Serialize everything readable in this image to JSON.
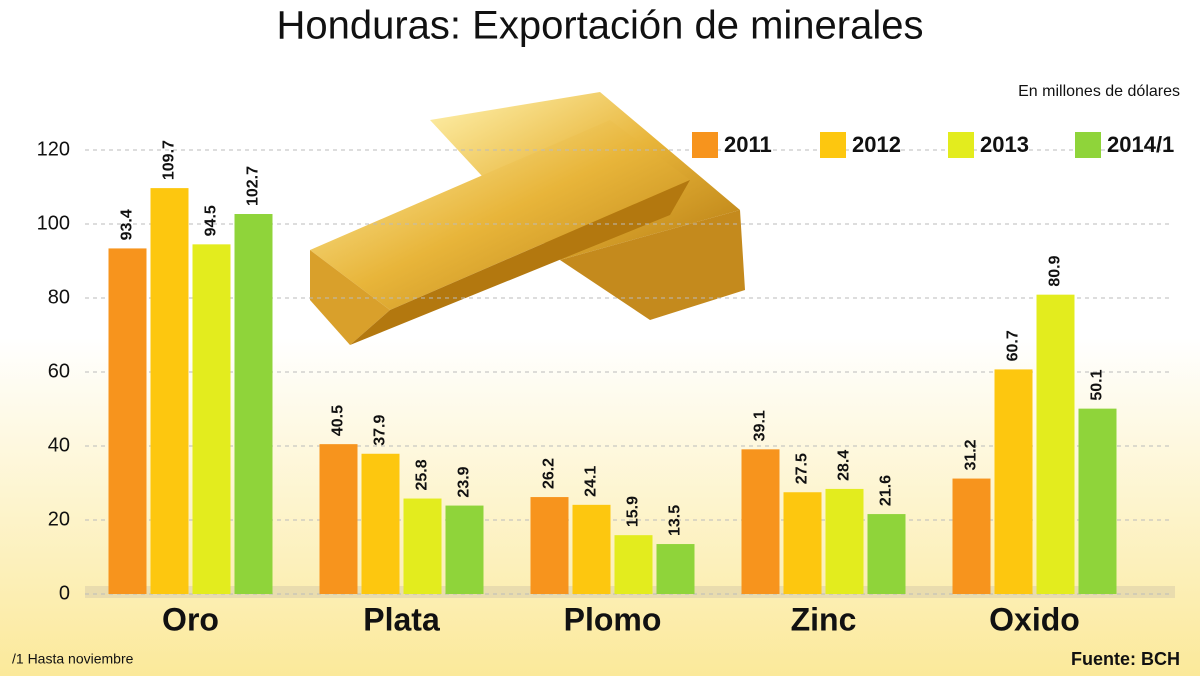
{
  "chart_data": {
    "type": "bar",
    "title": "Honduras: Exportación de minerales",
    "subtitle": "En millones de dólares",
    "footnote": "/1 Hasta noviembre",
    "source": "Fuente: BCH",
    "categories": [
      "Oro",
      "Plata",
      "Plomo",
      "Zinc",
      "Oxido"
    ],
    "series": [
      {
        "name": "2011",
        "color": "#f7941d",
        "values": [
          93.4,
          40.5,
          26.2,
          39.1,
          31.2
        ]
      },
      {
        "name": "2012",
        "color": "#fdc70f",
        "values": [
          109.7,
          37.9,
          24.1,
          27.5,
          60.7
        ]
      },
      {
        "name": "2013",
        "color": "#e3ec1e",
        "values": [
          94.5,
          25.8,
          15.9,
          28.4,
          80.9
        ]
      },
      {
        "name": "2014/1",
        "color": "#8fd43a",
        "values": [
          102.7,
          23.9,
          13.5,
          21.6,
          50.1
        ]
      }
    ],
    "ylim": [
      0,
      120
    ],
    "yticks": [
      0,
      20,
      40,
      60,
      80,
      100,
      120
    ],
    "grid": true,
    "legend": "top-right"
  }
}
